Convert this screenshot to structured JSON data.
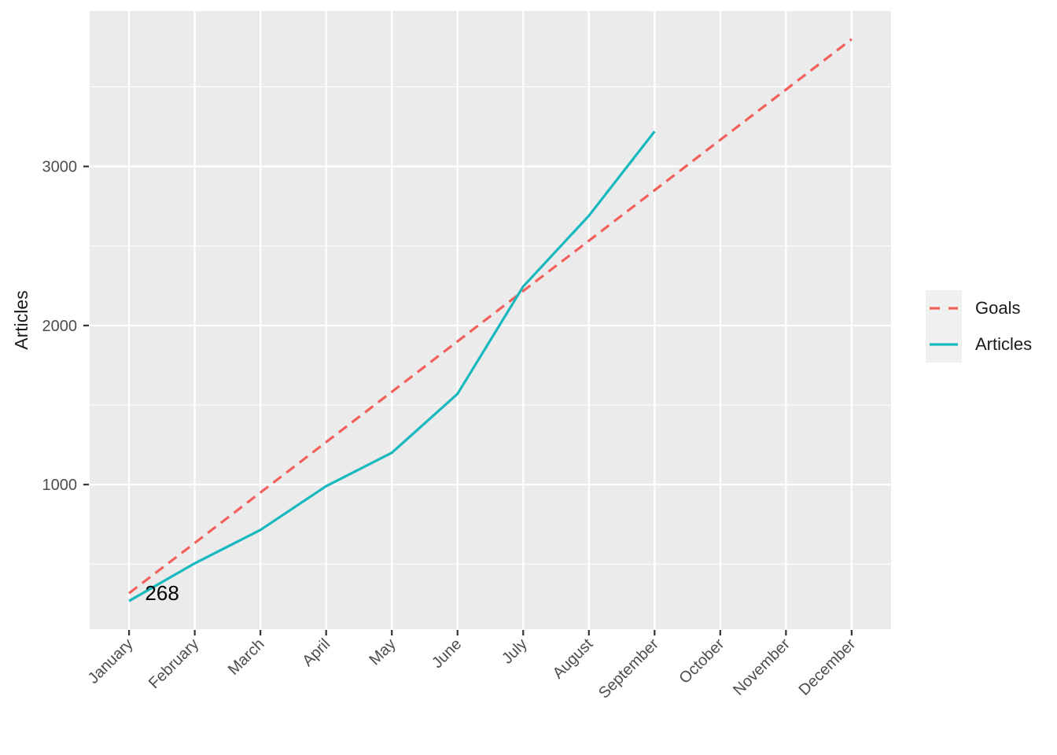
{
  "chart_data": {
    "type": "line",
    "title": "",
    "xlabel": "",
    "ylabel": "Articles",
    "categories": [
      "January",
      "February",
      "March",
      "April",
      "May",
      "June",
      "July",
      "August",
      "September",
      "October",
      "November",
      "December"
    ],
    "y_ticks": [
      1000,
      2000,
      3000
    ],
    "y_minor_ticks": [
      500,
      1500,
      2500,
      3500
    ],
    "ylim": [
      91,
      3977
    ],
    "grid": true,
    "legend_position": "right",
    "series": [
      {
        "name": "Goals",
        "style": "dashed",
        "color": "#F2605C",
        "values": [
          317,
          633,
          950,
          1267,
          1583,
          1900,
          2217,
          2533,
          2850,
          3167,
          3483,
          3800
        ]
      },
      {
        "name": "Articles",
        "style": "solid",
        "color": "#17B8BE",
        "values": [
          268,
          505,
          715,
          990,
          1200,
          1570,
          2245,
          2690,
          3220
        ]
      }
    ],
    "annotations": [
      {
        "text": "268",
        "x": "January",
        "y": 268
      }
    ],
    "colors": {
      "figure_background": "#FFFFFF",
      "panel_background": "#EBEBEB",
      "grid": "#FFFFFF",
      "axis_text": "#4D4D4D",
      "tick_marks": "#333333",
      "annotation_text": "#000000",
      "legend_key_background": "#F0F0F0"
    }
  }
}
